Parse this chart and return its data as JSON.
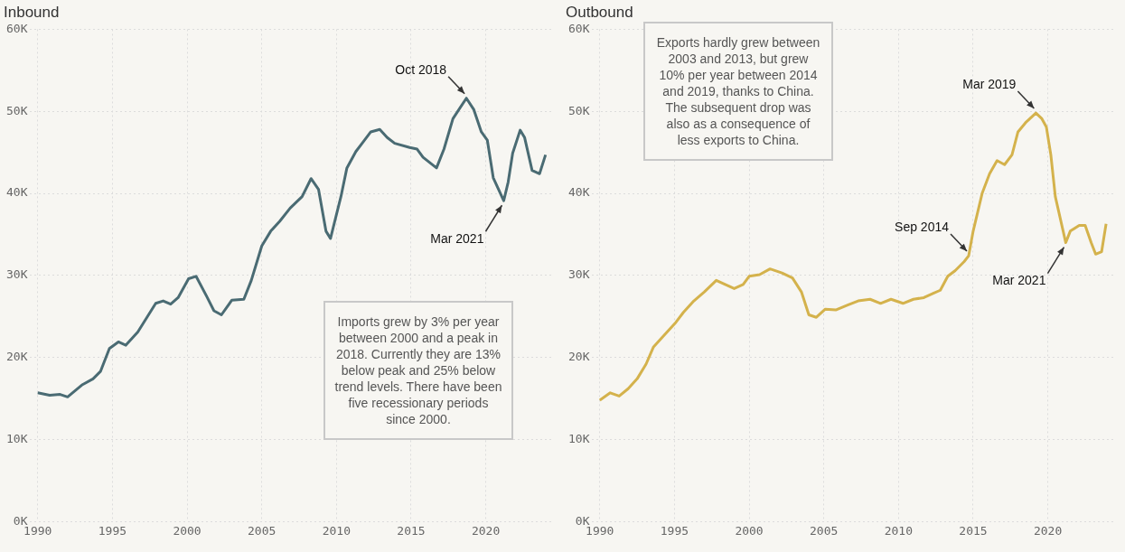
{
  "chart_data": [
    {
      "type": "line",
      "title": "Inbound",
      "xlim": [
        1989.5,
        2024.5
      ],
      "xticks": [
        1990,
        1995,
        2000,
        2005,
        2010,
        2015,
        2020
      ],
      "ylim": [
        0,
        60000
      ],
      "yticks": [
        {
          "value": 0,
          "label": "0K"
        },
        {
          "value": 10000,
          "label": "10K"
        },
        {
          "value": 20000,
          "label": "20K"
        },
        {
          "value": 30000,
          "label": "30K"
        },
        {
          "value": 40000,
          "label": "40K"
        },
        {
          "value": 50000,
          "label": "50K"
        },
        {
          "value": 60000,
          "label": "60K"
        }
      ],
      "grid": true,
      "legend": false,
      "marker": "none",
      "line_style": "solid",
      "series": [
        {
          "color": "#4a6b73",
          "x": [
            1990.0,
            1990.8,
            1991.5,
            1992.0,
            1993.0,
            1993.7,
            1994.2,
            1994.8,
            1995.4,
            1995.9,
            1996.7,
            1997.9,
            1998.4,
            1998.9,
            1999.4,
            2000.1,
            2000.6,
            2001.3,
            2001.8,
            2002.3,
            2003.0,
            2003.8,
            2004.3,
            2005.0,
            2005.6,
            2006.2,
            2006.9,
            2007.7,
            2008.3,
            2008.8,
            2009.3,
            2009.6,
            2010.3,
            2010.7,
            2011.3,
            2011.8,
            2012.3,
            2012.9,
            2013.4,
            2013.9,
            2014.9,
            2015.4,
            2015.8,
            2016.7,
            2017.2,
            2017.8,
            2018.7,
            2019.2,
            2019.7,
            2020.1,
            2020.5,
            2021.2,
            2021.5,
            2021.8,
            2022.3,
            2022.6,
            2023.1,
            2023.6,
            2024.0
          ],
          "values": [
            15700,
            15400,
            15500,
            15200,
            16700,
            17400,
            18300,
            21100,
            21900,
            21500,
            23100,
            26600,
            26900,
            26500,
            27300,
            29600,
            29900,
            27500,
            25700,
            25200,
            27000,
            27100,
            29400,
            33600,
            35400,
            36600,
            38200,
            39600,
            41800,
            40500,
            35400,
            34500,
            39600,
            43100,
            45100,
            46300,
            47500,
            47800,
            46800,
            46100,
            45600,
            45400,
            44400,
            43100,
            45400,
            49100,
            51600,
            50200,
            47500,
            46500,
            41900,
            39100,
            41400,
            44900,
            47700,
            46800,
            42800,
            42400,
            44700
          ]
        }
      ],
      "annotations": [
        {
          "text": "Oct 2018",
          "x": 2018.7,
          "y": 51600
        },
        {
          "text": "Mar 2021",
          "x": 2021.2,
          "y": 39100
        },
        "Imports grew by 3% per year between 2000 and a peak in 2018. Currently they are 13% below peak and 25% below trend levels. There have been five recessionary periods since 2000."
      ]
    },
    {
      "type": "line",
      "title": "Outbound",
      "xlim": [
        1989.5,
        2024.5
      ],
      "xticks": [
        1990,
        1995,
        2000,
        2005,
        2010,
        2015,
        2020
      ],
      "ylim": [
        0,
        60000
      ],
      "yticks": [
        {
          "value": 0,
          "label": "0K"
        },
        {
          "value": 10000,
          "label": "10K"
        },
        {
          "value": 20000,
          "label": "20K"
        },
        {
          "value": 30000,
          "label": "30K"
        },
        {
          "value": 40000,
          "label": "40K"
        },
        {
          "value": 50000,
          "label": "50K"
        },
        {
          "value": 60000,
          "label": "60K"
        }
      ],
      "grid": true,
      "legend": false,
      "marker": "none",
      "line_style": "solid",
      "series": [
        {
          "color": "#d4b24c",
          "x": [
            1990.0,
            1990.7,
            1991.3,
            1991.9,
            1992.5,
            1993.1,
            1993.6,
            1994.3,
            1995.1,
            1995.6,
            1996.3,
            1997.0,
            1997.8,
            1998.4,
            1999.0,
            1999.6,
            2000.0,
            2000.7,
            2001.4,
            2002.2,
            2002.9,
            2003.5,
            2004.0,
            2004.5,
            2005.1,
            2005.8,
            2006.6,
            2007.3,
            2008.1,
            2008.8,
            2009.5,
            2010.3,
            2011.0,
            2011.7,
            2012.3,
            2012.8,
            2013.3,
            2013.8,
            2014.4,
            2014.7,
            2015.0,
            2015.6,
            2016.1,
            2016.6,
            2017.1,
            2017.6,
            2018.0,
            2018.5,
            2019.2,
            2019.6,
            2019.9,
            2020.2,
            2020.5,
            2021.2,
            2021.5,
            2022.1,
            2022.5,
            2022.9,
            2023.2,
            2023.6,
            2023.9
          ],
          "values": [
            14800,
            15700,
            15300,
            16200,
            17400,
            19200,
            21300,
            22700,
            24300,
            25500,
            26900,
            28000,
            29400,
            28900,
            28400,
            28900,
            29900,
            30100,
            30800,
            30300,
            29700,
            28000,
            25200,
            24900,
            25900,
            25800,
            26400,
            26900,
            27100,
            26600,
            27100,
            26600,
            27100,
            27300,
            27800,
            28200,
            29900,
            30600,
            31700,
            32400,
            35400,
            40000,
            42400,
            44000,
            43500,
            44700,
            47500,
            48600,
            49800,
            49100,
            48100,
            44700,
            39600,
            34000,
            35400,
            36100,
            36100,
            34000,
            32600,
            32900,
            36300
          ]
        }
      ],
      "annotations": [
        {
          "text": "Mar 2019",
          "x": 2019.2,
          "y": 49800
        },
        {
          "text": "Sep 2014",
          "x": 2014.7,
          "y": 32400
        },
        {
          "text": "Mar 2021",
          "x": 2021.2,
          "y": 34000
        },
        "Exports hardly grew between 2003 and 2013, but grew 10% per year between 2014 and 2019, thanks to China. The subsequent drop was also as a consequence of less exports to China."
      ]
    }
  ]
}
